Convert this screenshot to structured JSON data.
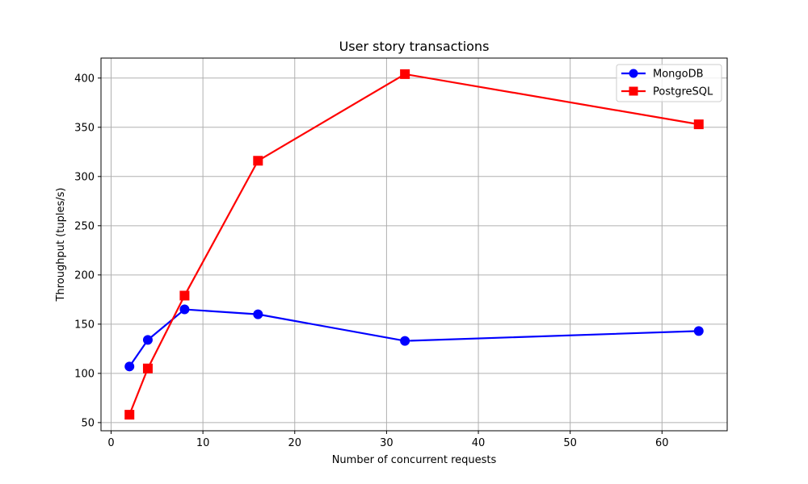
{
  "chart_data": {
    "type": "line",
    "title": "User story transactions",
    "xlabel": "Number of concurrent requests",
    "ylabel": "Throughput (tuples/s)",
    "xlim": [
      -1.1,
      67.1
    ],
    "ylim": [
      41.7,
      420.3
    ],
    "xticks": [
      0,
      10,
      20,
      30,
      40,
      50,
      60
    ],
    "yticks": [
      50,
      100,
      150,
      200,
      250,
      300,
      350,
      400
    ],
    "grid": true,
    "legend_position": "top-right",
    "series": [
      {
        "name": "MongoDB",
        "color": "#0000ff",
        "marker": "circle",
        "x": [
          2,
          4,
          8,
          16,
          32,
          64
        ],
        "y": [
          107,
          134,
          165,
          160,
          133,
          143
        ]
      },
      {
        "name": "PostgreSQL",
        "color": "#ff0000",
        "marker": "square",
        "x": [
          2,
          4,
          8,
          16,
          32,
          64
        ],
        "y": [
          58,
          105,
          179,
          316,
          404,
          353
        ]
      }
    ]
  }
}
